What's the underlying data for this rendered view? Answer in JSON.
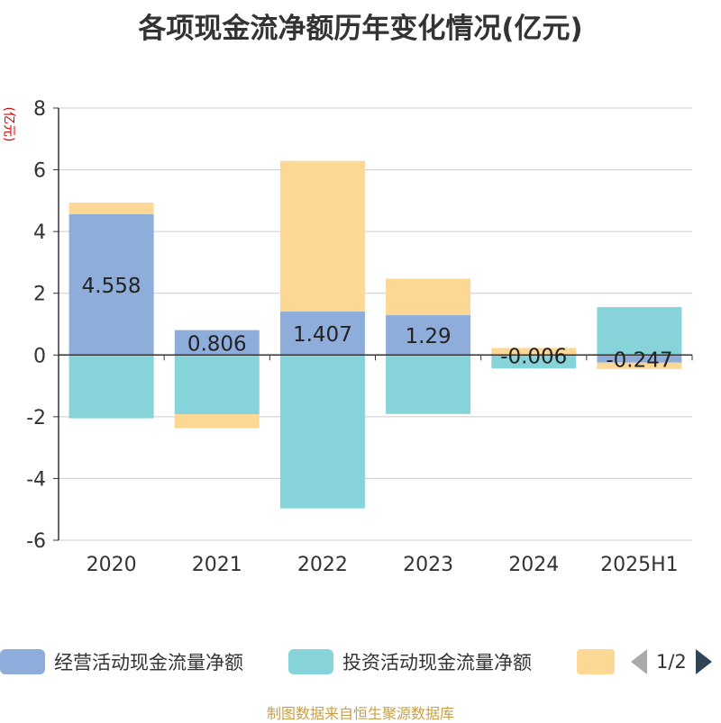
{
  "title": "各项现金流净额历年变化情况(亿元)",
  "y_unit": "(亿元)",
  "source": "制图数据来自恒生聚源数据库",
  "legend": {
    "items": [
      {
        "label": "经营活动现金流量净额",
        "color": "#8eaddb"
      },
      {
        "label": "投资活动现金流量净额",
        "color": "#86d4d9"
      },
      {
        "label": "",
        "color": "#fdd895"
      }
    ],
    "page": "1/2"
  },
  "chart_data": {
    "type": "bar",
    "stacked": true,
    "categories": [
      "2020",
      "2021",
      "2022",
      "2023",
      "2024",
      "2025H1"
    ],
    "ylim": [
      -6,
      8
    ],
    "yticks": [
      "-6",
      "-4",
      "-2",
      "0",
      "2",
      "4",
      "6",
      "8"
    ],
    "grid": true,
    "series": [
      {
        "name": "经营活动现金流量净额",
        "color": "#8eaddb",
        "values": [
          4.558,
          0.806,
          1.407,
          1.29,
          -0.006,
          -0.247
        ],
        "labels": [
          "4.558",
          "0.806",
          "1.407",
          "1.29",
          "-0.006",
          "-0.247"
        ]
      },
      {
        "name": "投资活动现金流量净额",
        "color": "#86d4d9",
        "values": [
          -2.05,
          -1.92,
          -4.97,
          -1.91,
          -0.43,
          1.55
        ]
      },
      {
        "color": "#fdd895",
        "values": [
          0.38,
          -0.45,
          4.88,
          1.18,
          0.23,
          -0.21
        ]
      }
    ]
  }
}
